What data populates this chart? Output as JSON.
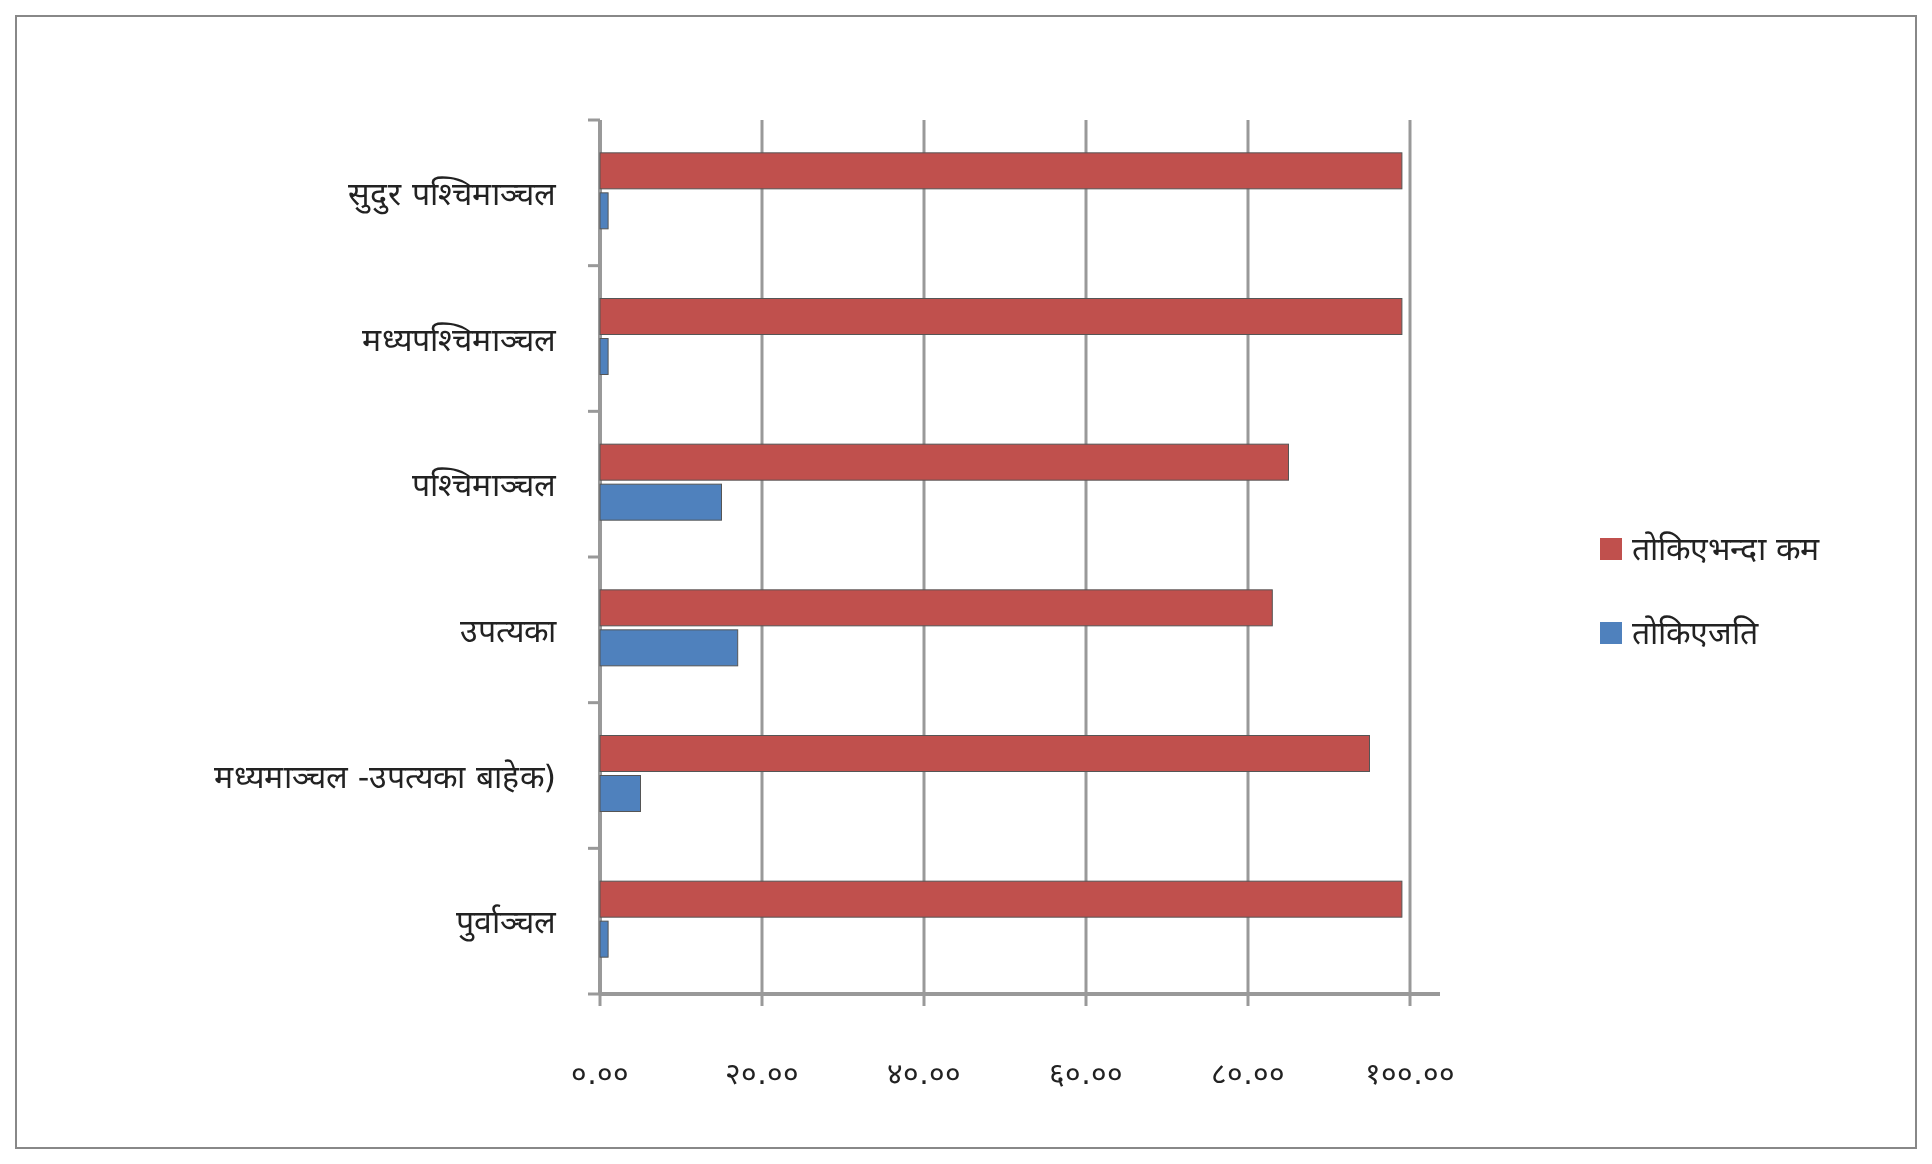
{
  "chart_data": {
    "type": "bar",
    "orientation": "horizontal",
    "categories": [
      "सुदुर पश्चिमाञ्चल",
      "मध्यपश्चिमाञ्चल",
      "पश्चिमाञ्चल",
      "उपत्यका",
      "मध्यमाञ्चल -उपत्यका बाहेक)",
      "पुर्वाञ्चल"
    ],
    "series": [
      {
        "name": "तोकिएभन्दा कम",
        "color": "#c0504d",
        "values": [
          99,
          99,
          85,
          83,
          95,
          99
        ]
      },
      {
        "name": "तोकिएजति",
        "color": "#4f81bd",
        "values": [
          1,
          1,
          15,
          17,
          5,
          1
        ]
      }
    ],
    "xlim": [
      0,
      100
    ],
    "xticks": [
      {
        "value": 0,
        "label": "०.००"
      },
      {
        "value": 20,
        "label": "२०.००"
      },
      {
        "value": 40,
        "label": "४०.००"
      },
      {
        "value": 60,
        "label": "६०.००"
      },
      {
        "value": 80,
        "label": "८०.००"
      },
      {
        "value": 100,
        "label": "१००.००"
      }
    ],
    "grid": "x",
    "legend": "right"
  }
}
